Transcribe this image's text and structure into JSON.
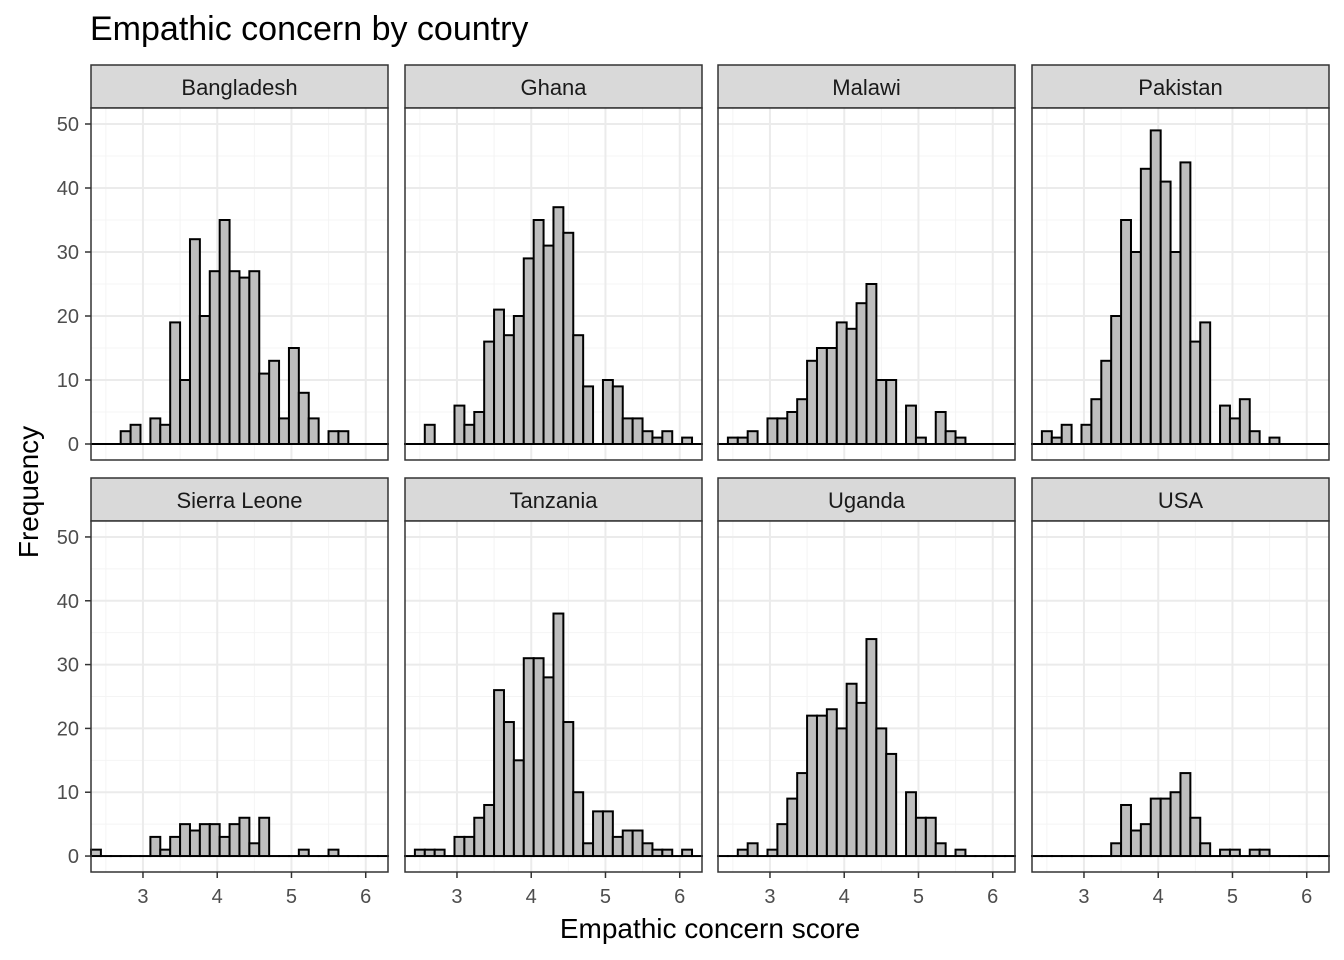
{
  "chart_data": {
    "type": "bar",
    "title": "Empathic concern by country",
    "xlabel": "Empathic concern score",
    "ylabel": "Frequency",
    "xlim": [
      2.3,
      6.3
    ],
    "ylim": [
      -2.5,
      52.5
    ],
    "x_ticks": [
      3,
      4,
      5,
      6
    ],
    "y_ticks": [
      0,
      10,
      20,
      30,
      40,
      50
    ],
    "grid": true,
    "bin_start": 2.3,
    "bin_width": 0.1333,
    "facets": [
      {
        "name": "Bangladesh",
        "values": [
          0,
          0,
          0,
          2,
          3,
          0,
          4,
          3,
          19,
          10,
          32,
          20,
          27,
          35,
          27,
          26,
          27,
          11,
          13,
          4,
          15,
          8,
          4,
          0,
          2,
          2,
          0,
          0,
          0,
          0
        ]
      },
      {
        "name": "Ghana",
        "values": [
          0,
          0,
          3,
          0,
          0,
          6,
          3,
          5,
          16,
          21,
          17,
          20,
          29,
          35,
          31,
          37,
          33,
          17,
          9,
          0,
          10,
          9,
          4,
          4,
          2,
          1,
          2,
          0,
          1,
          0
        ]
      },
      {
        "name": "Malawi",
        "values": [
          0,
          1,
          1,
          2,
          0,
          4,
          4,
          5,
          7,
          13,
          15,
          15,
          19,
          18,
          22,
          25,
          10,
          10,
          0,
          6,
          1,
          0,
          5,
          2,
          1,
          0,
          0,
          0,
          0,
          0
        ]
      },
      {
        "name": "Pakistan",
        "values": [
          0,
          2,
          1,
          3,
          0,
          3,
          7,
          13,
          20,
          35,
          30,
          43,
          49,
          41,
          30,
          44,
          16,
          19,
          0,
          6,
          4,
          7,
          2,
          0,
          1,
          0,
          0,
          0,
          0,
          0
        ]
      },
      {
        "name": "Sierra Leone",
        "values": [
          1,
          0,
          0,
          0,
          0,
          0,
          3,
          1,
          3,
          5,
          4,
          5,
          5,
          3,
          5,
          6,
          2,
          6,
          0,
          0,
          0,
          1,
          0,
          0,
          1,
          0,
          0,
          0,
          0,
          0
        ]
      },
      {
        "name": "Tanzania",
        "values": [
          0,
          1,
          1,
          1,
          0,
          3,
          3,
          6,
          8,
          26,
          21,
          15,
          31,
          31,
          28,
          38,
          21,
          10,
          2,
          7,
          7,
          3,
          4,
          4,
          2,
          1,
          1,
          0,
          1,
          0
        ]
      },
      {
        "name": "Uganda",
        "values": [
          0,
          0,
          1,
          2,
          0,
          1,
          5,
          9,
          13,
          22,
          22,
          23,
          20,
          27,
          24,
          34,
          20,
          16,
          0,
          10,
          6,
          6,
          2,
          0,
          1,
          0,
          0,
          0,
          0,
          0
        ]
      },
      {
        "name": "USA",
        "values": [
          0,
          0,
          0,
          0,
          0,
          0,
          0,
          0,
          2,
          8,
          4,
          5,
          9,
          9,
          10,
          13,
          6,
          2,
          0,
          1,
          1,
          0,
          1,
          1,
          0,
          0,
          0,
          0,
          0,
          0
        ]
      }
    ],
    "colors": {
      "bar_fill": "#bebebe",
      "bar_stroke": "#000000",
      "strip_fill": "#d9d9d9",
      "grid_major": "#ebebeb",
      "grid_minor": "#f4f4f4",
      "panel_border": "#333333",
      "axis_text": "#4d4d4d"
    }
  }
}
